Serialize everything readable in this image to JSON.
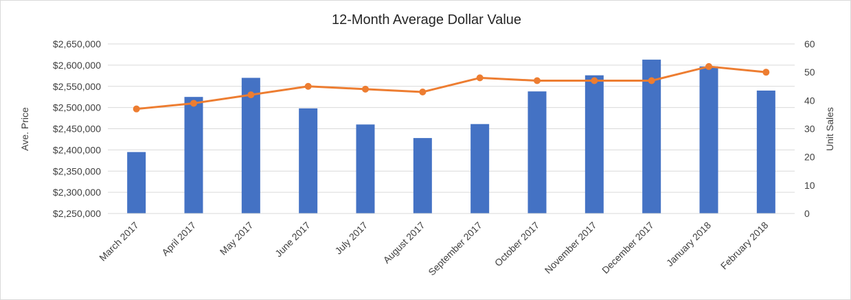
{
  "chart_data": {
    "type": "bar",
    "title": "12-Month Average Dollar Value",
    "categories": [
      "March 2017",
      "April 2017",
      "May 2017",
      "June 2017",
      "July 2017",
      "August 2017",
      "September 2017",
      "October 2017",
      "November 2017",
      "December 2017",
      "January 2018",
      "February 2018"
    ],
    "ylabel_left": "Ave. Price",
    "ylabel_right": "Unit Sales",
    "y_left_range": [
      2250000,
      2650000
    ],
    "y_left_ticks": [
      "$2,250,000",
      "$2,300,000",
      "$2,350,000",
      "$2,400,000",
      "$2,450,000",
      "$2,500,000",
      "$2,550,000",
      "$2,600,000",
      "$2,650,000"
    ],
    "y_right_range": [
      0,
      60
    ],
    "y_right_ticks": [
      "0",
      "10",
      "20",
      "30",
      "40",
      "50",
      "60"
    ],
    "grid": true,
    "legend": "none",
    "series": [
      {
        "type": "bar",
        "axis": "left",
        "color": "#4472c4",
        "values": [
          2395000,
          2525000,
          2570000,
          2498000,
          2460000,
          2428000,
          2461000,
          2538000,
          2576000,
          2613000,
          2597000,
          2540000
        ]
      },
      {
        "type": "line",
        "axis": "right",
        "color": "#ed7d31",
        "values": [
          37,
          39,
          42,
          45,
          44,
          43,
          48,
          47,
          47,
          47,
          52,
          50
        ]
      }
    ]
  }
}
